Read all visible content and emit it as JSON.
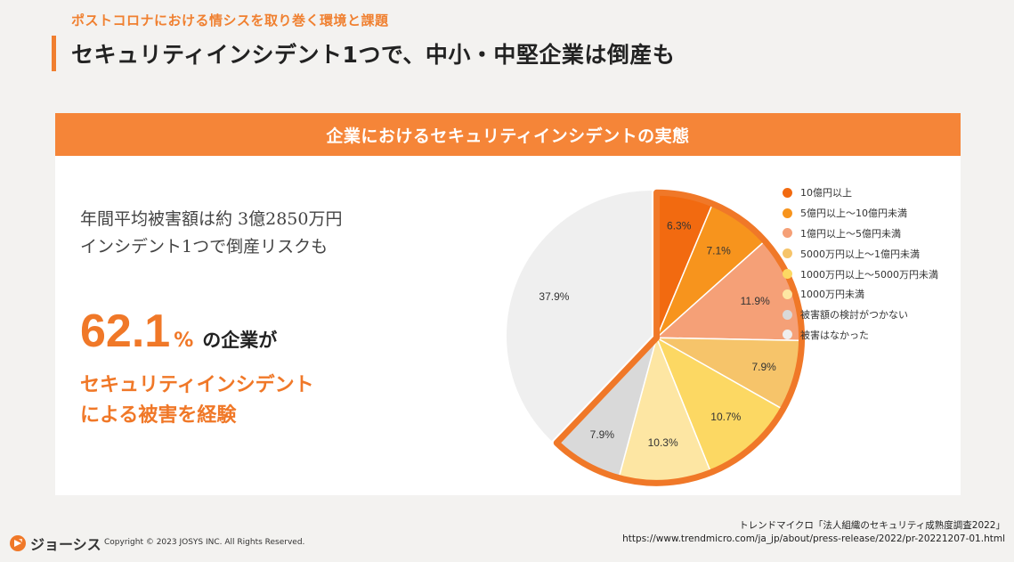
{
  "header": {
    "subtitle": "ポストコロナにおける情シスを取り巻く環境と課題",
    "title": "セキュリティインシデント1つで、中小・中堅企業は倒産も"
  },
  "panel": {
    "header": "企業におけるセキュリティインシデントの実態",
    "desc_line1": "年間平均被害額は約 3億2850万円",
    "desc_line2": "インシデント1つで倒産リスクも",
    "big_number": "62.1",
    "big_percent": "%",
    "big_suffix": "の企業が",
    "highlight_line1": "セキュリティインシデント",
    "highlight_line2": "による被害を経験"
  },
  "chart_data": {
    "type": "pie",
    "labels": [
      "10億円以上",
      "5億円以上～10億円未満",
      "1億円以上～5億円未満",
      "5000万円以上～1億円未満",
      "1000万円以上～5000万円未満",
      "1000万円未満",
      "被害額の検討がつかない",
      "被害はなかった"
    ],
    "values": [
      6.3,
      7.1,
      11.9,
      7.9,
      10.7,
      10.3,
      7.9,
      37.9
    ],
    "value_labels": [
      "6.3%",
      "7.1%",
      "11.9%",
      "7.9%",
      "10.7%",
      "10.3%",
      "7.9%",
      "37.9%"
    ],
    "colors": [
      "#f26a10",
      "#f7941d",
      "#f5a077",
      "#f6c46a",
      "#fcd863",
      "#fde6a3",
      "#d9d9d9",
      "#efefef"
    ],
    "highlight_share": "62.1%",
    "legend_position": "right"
  },
  "source": {
    "line1": "トレンドマイクロ「法人組織のセキュリティ成熟度調査2022」",
    "line2": "https://www.trendmicro.com/ja_jp/about/press-release/2022/pr-20221207-01.html"
  },
  "footer": {
    "logo_text": "ジョーシス",
    "copyright": "Copyright © 2023 JOSYS INC. All Rights Reserved."
  }
}
